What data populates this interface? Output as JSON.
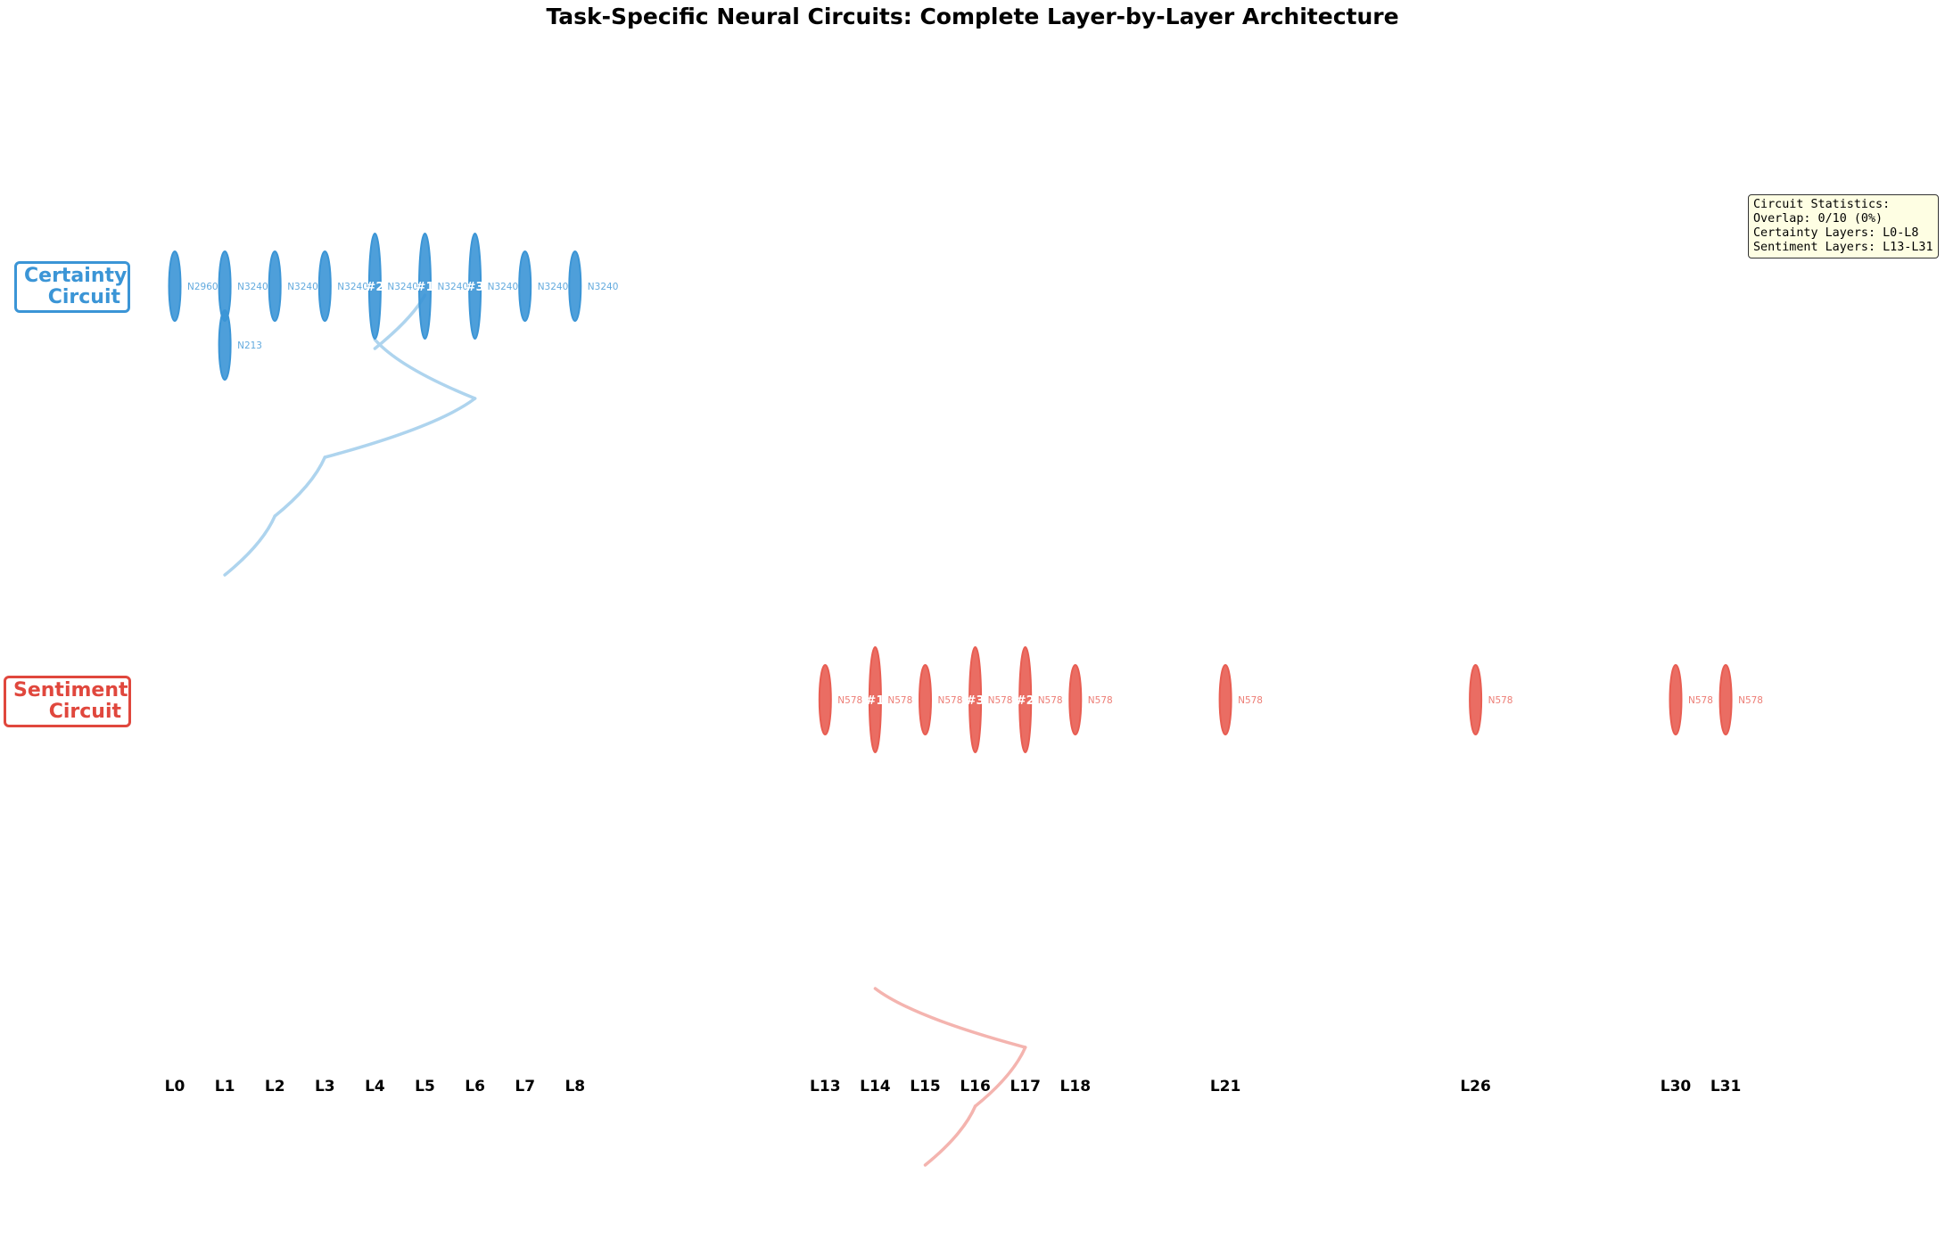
{
  "title": "Task-Specific Neural Circuits: Complete Layer-by-Layer Architecture",
  "circuits": {
    "certainty": {
      "label_line1": "Certainty",
      "label_line2": "Circuit",
      "color": "#3b95d6",
      "edge_color": "#aed4ee"
    },
    "sentiment": {
      "label_line1": "Sentiment",
      "label_line2": "Circuit",
      "color": "#e85d52",
      "edge_color": "#f4b4af"
    }
  },
  "stats": {
    "line1": "Circuit Statistics:",
    "line2": "Overlap: 0/10 (0%)",
    "line3": "Certainty Layers: L0-L8",
    "line4": "Sentiment Layers: L13-L31"
  },
  "layers": [
    {
      "label": "L0",
      "layer": 0
    },
    {
      "label": "L1",
      "layer": 1
    },
    {
      "label": "L2",
      "layer": 2
    },
    {
      "label": "L3",
      "layer": 3
    },
    {
      "label": "L4",
      "layer": 4
    },
    {
      "label": "L5",
      "layer": 5
    },
    {
      "label": "L6",
      "layer": 6
    },
    {
      "label": "L7",
      "layer": 7
    },
    {
      "label": "L8",
      "layer": 8
    },
    {
      "label": "L13",
      "layer": 13
    },
    {
      "label": "L14",
      "layer": 14
    },
    {
      "label": "L15",
      "layer": 15
    },
    {
      "label": "L16",
      "layer": 16
    },
    {
      "label": "L17",
      "layer": 17
    },
    {
      "label": "L18",
      "layer": 18
    },
    {
      "label": "L21",
      "layer": 21
    },
    {
      "label": "L26",
      "layer": 26
    },
    {
      "label": "L30",
      "layer": 30
    },
    {
      "label": "L31",
      "layer": 31
    }
  ],
  "neurons": [
    {
      "circuit": "certainty",
      "layer": 0,
      "row": 0,
      "label": "N2960",
      "rank": "",
      "major": false
    },
    {
      "circuit": "certainty",
      "layer": 1,
      "row": 0,
      "label": "N3240",
      "rank": "",
      "major": false
    },
    {
      "circuit": "certainty",
      "layer": 1,
      "row": 1,
      "label": "N213",
      "rank": "",
      "major": false
    },
    {
      "circuit": "certainty",
      "layer": 2,
      "row": 0,
      "label": "N3240",
      "rank": "",
      "major": false
    },
    {
      "circuit": "certainty",
      "layer": 3,
      "row": 0,
      "label": "N3240",
      "rank": "",
      "major": false
    },
    {
      "circuit": "certainty",
      "layer": 4,
      "row": 0,
      "label": "N3240",
      "rank": "#2",
      "major": true
    },
    {
      "circuit": "certainty",
      "layer": 5,
      "row": 0,
      "label": "N3240",
      "rank": "#1",
      "major": true
    },
    {
      "circuit": "certainty",
      "layer": 6,
      "row": 0,
      "label": "N3240",
      "rank": "#3",
      "major": true
    },
    {
      "circuit": "certainty",
      "layer": 7,
      "row": 0,
      "label": "N3240",
      "rank": "",
      "major": false
    },
    {
      "circuit": "certainty",
      "layer": 8,
      "row": 0,
      "label": "N3240",
      "rank": "",
      "major": false
    },
    {
      "circuit": "sentiment",
      "layer": 13,
      "row": 0,
      "label": "N578",
      "rank": "",
      "major": false
    },
    {
      "circuit": "sentiment",
      "layer": 14,
      "row": 0,
      "label": "N578",
      "rank": "#1",
      "major": true
    },
    {
      "circuit": "sentiment",
      "layer": 15,
      "row": 0,
      "label": "N578",
      "rank": "",
      "major": false
    },
    {
      "circuit": "sentiment",
      "layer": 16,
      "row": 0,
      "label": "N578",
      "rank": "#3",
      "major": true
    },
    {
      "circuit": "sentiment",
      "layer": 17,
      "row": 0,
      "label": "N578",
      "rank": "#2",
      "major": true
    },
    {
      "circuit": "sentiment",
      "layer": 18,
      "row": 0,
      "label": "N578",
      "rank": "",
      "major": false
    },
    {
      "circuit": "sentiment",
      "layer": 21,
      "row": 0,
      "label": "N578",
      "rank": "",
      "major": false
    },
    {
      "circuit": "sentiment",
      "layer": 26,
      "row": 0,
      "label": "N578",
      "rank": "",
      "major": false
    },
    {
      "circuit": "sentiment",
      "layer": 30,
      "row": 0,
      "label": "N578",
      "rank": "",
      "major": false
    },
    {
      "circuit": "sentiment",
      "layer": 31,
      "row": 0,
      "label": "N578",
      "rank": "",
      "major": false
    }
  ],
  "edges": [
    {
      "circuit": "certainty",
      "from": 5,
      "to": 4
    },
    {
      "circuit": "certainty",
      "from": 4,
      "to": 6
    },
    {
      "circuit": "certainty",
      "from": 6,
      "to": 3
    },
    {
      "circuit": "certainty",
      "from": 3,
      "to": 2
    },
    {
      "circuit": "certainty",
      "from": 2,
      "to": 1
    },
    {
      "circuit": "sentiment",
      "from": 14,
      "to": 17
    },
    {
      "circuit": "sentiment",
      "from": 17,
      "to": 16
    },
    {
      "circuit": "sentiment",
      "from": 16,
      "to": 15
    }
  ]
}
